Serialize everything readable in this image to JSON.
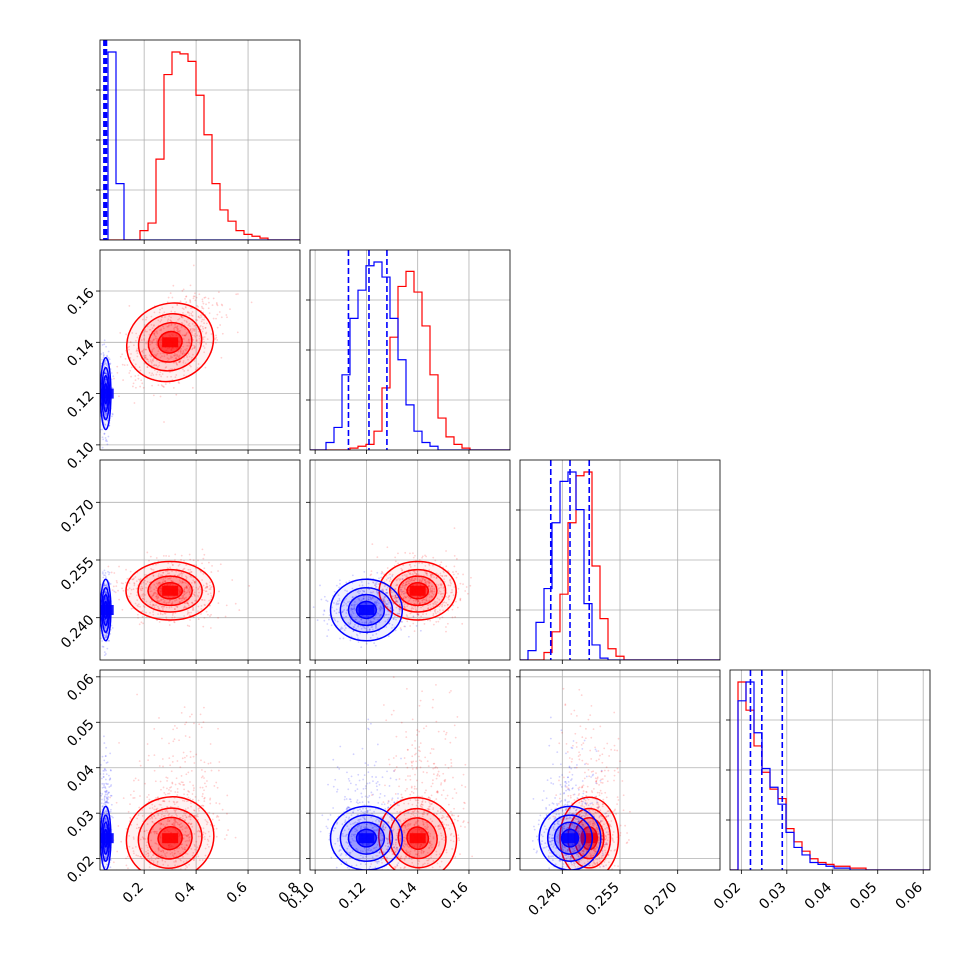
{
  "chart_data": {
    "type": "corner",
    "parameters": [
      {
        "range": [
          0.03,
          0.8
        ],
        "ticks": [
          "0.2",
          "0.4",
          "0.6",
          "0.8"
        ],
        "tick_values": [
          0.2,
          0.4,
          0.6,
          0.8
        ]
      },
      {
        "range": [
          0.098,
          0.176
        ],
        "ticks": [
          "0.10",
          "0.12",
          "0.14",
          "0.16"
        ],
        "tick_values": [
          0.1,
          0.12,
          0.14,
          0.16
        ]
      },
      {
        "range": [
          0.229,
          0.281
        ],
        "ticks": [
          "0.240",
          "0.255",
          "0.270"
        ],
        "tick_values": [
          0.24,
          0.255,
          0.27
        ]
      },
      {
        "range": [
          0.0175,
          0.0615
        ],
        "ticks": [
          "0.02",
          "0.03",
          "0.04",
          "0.05",
          "0.06"
        ],
        "tick_values": [
          0.02,
          0.03,
          0.04,
          0.05,
          0.06
        ]
      }
    ],
    "grid": true,
    "series": [
      {
        "color": "#ff0000",
        "centers": [
          0.3,
          0.14,
          0.247,
          0.0245
        ],
        "sigmas": [
          0.085,
          0.0075,
          0.0038,
          0.0045
        ],
        "skew": [
          0.012,
          0,
          0,
          0.006
        ]
      },
      {
        "color": "#0000ff",
        "centers": [
          0.052,
          0.12,
          0.242,
          0.0245
        ],
        "sigmas": [
          0.01,
          0.007,
          0.004,
          0.0035
        ],
        "skew": [
          0,
          0,
          0,
          0.004
        ]
      }
    ],
    "quantile_lines": {
      "color": "#0000ff",
      "values": [
        [
          0.045,
          0.05,
          0.055
        ],
        [
          0.113,
          0.121,
          0.128
        ],
        [
          0.237,
          0.242,
          0.247
        ],
        [
          0.022,
          0.0245,
          0.029
        ]
      ]
    },
    "red_hist_1d": {
      "0": [
        0,
        0,
        0,
        0,
        0,
        5,
        9,
        43,
        88,
        100,
        99,
        95,
        77,
        56,
        30,
        16,
        10,
        5,
        3,
        2,
        1,
        0,
        0,
        0,
        0
      ],
      "1": [
        0,
        0,
        0,
        0,
        0,
        1,
        2,
        3,
        10,
        33,
        60,
        87,
        95,
        84,
        66,
        40,
        17,
        7,
        3,
        1,
        0,
        0,
        0,
        0,
        0
      ],
      "2": [
        0,
        0,
        0,
        4,
        15,
        35,
        73,
        98,
        100,
        50,
        22,
        6,
        2,
        0,
        0,
        0,
        0,
        0,
        0,
        0,
        0,
        0,
        0,
        0,
        0
      ],
      "3": [
        0,
        100,
        85,
        66,
        52,
        43,
        38,
        22,
        15,
        10,
        6,
        4,
        3,
        2,
        2,
        1,
        1,
        0,
        0,
        0,
        0,
        0,
        0,
        0,
        0
      ]
    },
    "blue_hist_1d": {
      "0": [
        0,
        100,
        30,
        0,
        0,
        0,
        0,
        0,
        0,
        0,
        0,
        0,
        0,
        0,
        0,
        0,
        0,
        0,
        0,
        0,
        0,
        0,
        0,
        0,
        0
      ],
      "1": [
        0,
        0,
        4,
        12,
        40,
        70,
        85,
        98,
        100,
        92,
        70,
        48,
        24,
        10,
        4,
        2,
        0,
        0,
        0,
        0,
        0,
        0,
        0,
        0,
        0
      ],
      "2": [
        0,
        5,
        20,
        38,
        73,
        95,
        100,
        80,
        30,
        8,
        1,
        0,
        0,
        0,
        0,
        0,
        0,
        0,
        0,
        0,
        0,
        0,
        0,
        0,
        0
      ],
      "3": [
        0,
        90,
        100,
        73,
        54,
        44,
        35,
        20,
        12,
        8,
        4,
        3,
        2,
        1,
        1,
        0,
        0,
        0,
        0,
        0,
        0,
        0,
        0,
        0,
        0
      ]
    }
  }
}
